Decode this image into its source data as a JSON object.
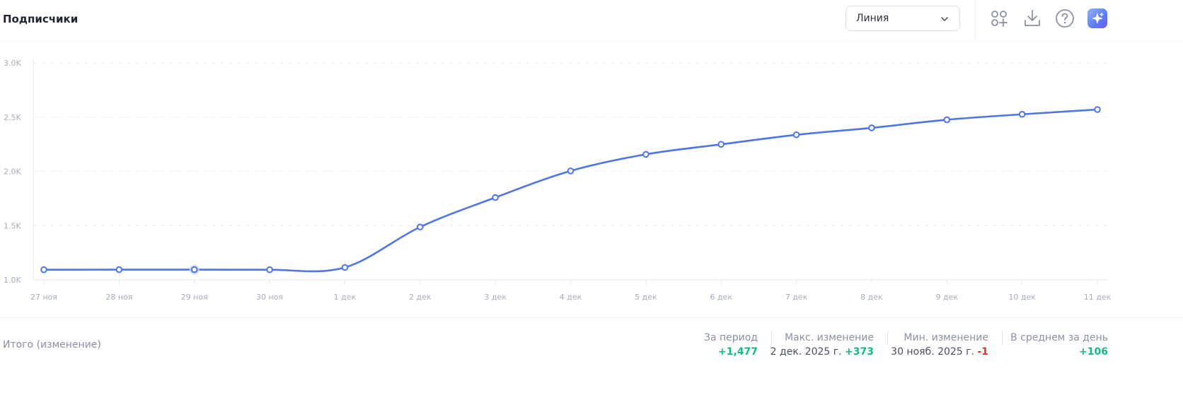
{
  "header": {
    "title": "Подписчики",
    "chart_type_select": "Линия",
    "icons": [
      "apps-plus-icon",
      "download-icon",
      "help-icon",
      "ai-sparkle-icon"
    ]
  },
  "colors": {
    "line": "#4f74e8",
    "positive": "#12b886",
    "negative": "#e03131",
    "muted": "#8a91a0"
  },
  "chart_data": {
    "type": "line",
    "title": "Подписчики",
    "categories": [
      "27 ноя",
      "28 ноя",
      "29 ноя",
      "30 ноя",
      "1 дек",
      "2 дек",
      "3 дек",
      "4 дек",
      "5 дек",
      "6 дек",
      "7 дек",
      "8 дек",
      "9 дек",
      "10 дек",
      "11 дек"
    ],
    "series": [
      {
        "values": [
          1093,
          1094,
          1094,
          1093,
          1114,
          1487,
          1759,
          2004,
          2157,
          2249,
          2337,
          2401,
          2476,
          2526,
          2570
        ]
      }
    ],
    "ylim": [
      1000,
      3000
    ],
    "yticks": [
      1000,
      1500,
      2000,
      2500,
      3000
    ],
    "ytick_labels": [
      "1.0K",
      "1.5K",
      "2.0K",
      "2.5K",
      "3.0K"
    ],
    "highlighted_index": 2,
    "grid": true,
    "legend": "none"
  },
  "footer": {
    "label": "Итого (изменение)",
    "stats": [
      {
        "title": "За период",
        "prefix": "",
        "value": "+1,477",
        "sign": "pos"
      },
      {
        "title": "Макс. изменение",
        "prefix": "2 дек. 2025 г.",
        "value": "+373",
        "sign": "pos"
      },
      {
        "title": "Мин. изменение",
        "prefix": "30 нояб. 2025 г.",
        "value": "-1",
        "sign": "neg"
      },
      {
        "title": "В среднем за день",
        "prefix": "",
        "value": "+106",
        "sign": "pos"
      }
    ]
  }
}
